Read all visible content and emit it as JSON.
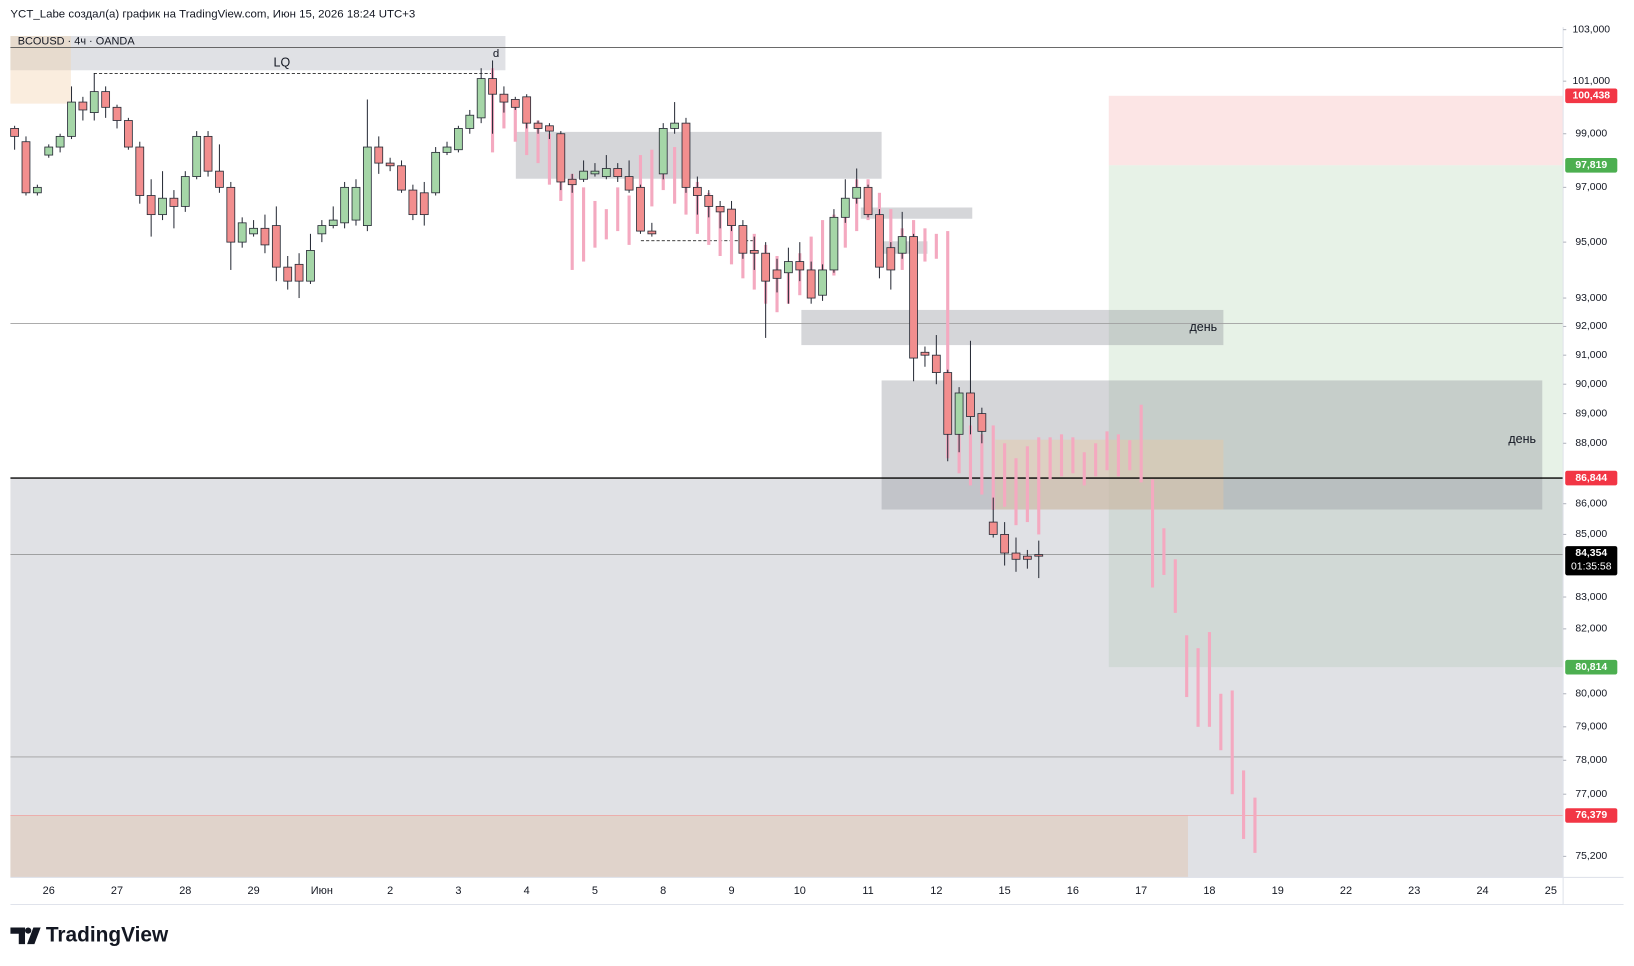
{
  "header": {
    "author_line": "YCT_Labe создал(а) график на TradingView.com, Июн 15, 2026 18:24 UTC+3",
    "symbol": "BCOUSD · 4ч · OANDA"
  },
  "footer": {
    "brand": "TradingView"
  },
  "chart_data": {
    "type": "candlestick",
    "yscale": "log",
    "grid": false,
    "up_color": "#a5d6a7",
    "down_color": "#f28e8e",
    "projection_color": "#f4a9c0",
    "categories": [
      "26",
      "27",
      "28",
      "29",
      "Июн",
      "2",
      "3",
      "4",
      "5",
      "8",
      "9",
      "10",
      "11",
      "12",
      "15",
      "16",
      "17",
      "18",
      "19",
      "22",
      "23",
      "24",
      "25"
    ],
    "ylim": [
      74600,
      103100
    ],
    "yticks": [
      {
        "value": 103000,
        "label": "103,000"
      },
      {
        "value": 101000,
        "label": "101,000"
      },
      {
        "value": 99000,
        "label": "99,000"
      },
      {
        "value": 97000,
        "label": "97,000"
      },
      {
        "value": 95000,
        "label": "95,000"
      },
      {
        "value": 93000,
        "label": "93,000"
      },
      {
        "value": 92000,
        "label": "92,000"
      },
      {
        "value": 91000,
        "label": "91,000"
      },
      {
        "value": 90000,
        "label": "90,000"
      },
      {
        "value": 89000,
        "label": "89,000"
      },
      {
        "value": 88000,
        "label": "88,000"
      },
      {
        "value": 86000,
        "label": "86,000"
      },
      {
        "value": 85000,
        "label": "85,000"
      },
      {
        "value": 83000,
        "label": "83,000"
      },
      {
        "value": 82000,
        "label": "82,000"
      },
      {
        "value": 80000,
        "label": "80,000"
      },
      {
        "value": 79000,
        "label": "79,000"
      },
      {
        "value": 78000,
        "label": "78,000"
      },
      {
        "value": 77000,
        "label": "77,000"
      },
      {
        "value": 75200,
        "label": "75,200"
      }
    ],
    "candles": {
      "open": [
        99200,
        98700,
        96800,
        98200,
        98500,
        98900,
        100200,
        99800,
        100600,
        100000,
        99500,
        98500,
        96700,
        96000,
        96600,
        96300,
        97400,
        98900,
        97600,
        97000,
        95000,
        95300,
        95500,
        95600,
        94100,
        94200,
        93600,
        95300,
        95600,
        95700,
        95800,
        95600,
        98500,
        97900,
        97800,
        96900,
        96800,
        96800,
        98300,
        98400,
        99200,
        99600,
        101100,
        100500,
        100300,
        100400,
        99400,
        99300,
        99000,
        97300,
        97300,
        97500,
        97400,
        97700,
        97400,
        97000,
        95400,
        97500,
        99200,
        99400,
        97000,
        96700,
        96300,
        96200,
        95600,
        94700,
        94600,
        94000,
        93900,
        94300,
        94000,
        93100,
        94000,
        95900,
        96600,
        97000,
        96000,
        94800,
        94600,
        95200,
        91100,
        91000,
        90400,
        88300,
        89700,
        89000,
        85400,
        85000,
        84400,
        84300,
        84350,
        null,
        null,
        null,
        null,
        null,
        null,
        null,
        null,
        null,
        null,
        null,
        null,
        null,
        null,
        null,
        null,
        null,
        null,
        null
      ],
      "high": [
        99300,
        98900,
        97100,
        98600,
        99000,
        100800,
        100400,
        101300,
        100800,
        100100,
        99600,
        98700,
        97300,
        97600,
        96900,
        97600,
        99100,
        99100,
        98600,
        97200,
        95900,
        95800,
        96000,
        96300,
        94500,
        94600,
        95300,
        95800,
        96300,
        97200,
        97300,
        100300,
        98900,
        98100,
        98000,
        97100,
        97200,
        98500,
        98700,
        99300,
        99900,
        101500,
        101800,
        100800,
        100400,
        100500,
        99500,
        99400,
        99100,
        97500,
        98000,
        97900,
        98200,
        97900,
        98000,
        97100,
        95700,
        99400,
        100200,
        99600,
        97400,
        96900,
        96500,
        96500,
        95800,
        95200,
        95000,
        94400,
        94800,
        95000,
        94300,
        94200,
        96200,
        97300,
        97700,
        97100,
        96200,
        95000,
        96100,
        95300,
        91300,
        91700,
        90500,
        89900,
        91500,
        89200,
        86200,
        85400,
        84900,
        84500,
        84800,
        null,
        null,
        null,
        null,
        null,
        null,
        null,
        null,
        null,
        null,
        null,
        null,
        null,
        null,
        null,
        null,
        null,
        null,
        null
      ],
      "low": [
        98400,
        96700,
        96700,
        98100,
        98300,
        98800,
        99500,
        99500,
        99600,
        99200,
        98400,
        96400,
        95200,
        95800,
        95500,
        96100,
        97300,
        97400,
        96800,
        94000,
        94800,
        95200,
        94600,
        93600,
        93300,
        93000,
        93500,
        95000,
        95500,
        95500,
        95600,
        95400,
        97500,
        97600,
        96800,
        95800,
        95600,
        96700,
        98200,
        98300,
        99000,
        99400,
        99000,
        99800,
        99900,
        99200,
        99000,
        98800,
        96900,
        96800,
        97200,
        97400,
        97300,
        97200,
        96800,
        95300,
        95200,
        97300,
        99000,
        96800,
        96000,
        95900,
        95500,
        95400,
        94400,
        94000,
        91600,
        93200,
        92800,
        93600,
        92800,
        92900,
        93900,
        95700,
        96400,
        95900,
        93700,
        93300,
        94400,
        90100,
        90600,
        90000,
        87400,
        87700,
        88300,
        88000,
        84900,
        84000,
        83800,
        83900,
        83600,
        null,
        null,
        null,
        null,
        null,
        null,
        null,
        null,
        null,
        null,
        null,
        null,
        null,
        null,
        null,
        null,
        null,
        null,
        null
      ],
      "close": [
        98900,
        96800,
        97000,
        98500,
        98900,
        100200,
        99900,
        100600,
        100000,
        99500,
        98500,
        96700,
        96000,
        96600,
        96300,
        97400,
        98900,
        97600,
        97000,
        95000,
        95700,
        95500,
        94900,
        94100,
        93600,
        93600,
        94700,
        95600,
        95800,
        97000,
        97000,
        98500,
        97900,
        97800,
        96900,
        96000,
        96000,
        98300,
        98500,
        99200,
        99700,
        101100,
        100500,
        100200,
        100000,
        99400,
        99200,
        99100,
        97200,
        97100,
        97600,
        97600,
        97700,
        97400,
        96900,
        95400,
        95300,
        99200,
        99400,
        97000,
        96700,
        96300,
        96100,
        95600,
        94600,
        94600,
        93600,
        93700,
        94300,
        94000,
        93000,
        94000,
        95900,
        96600,
        97000,
        96000,
        94100,
        94000,
        95200,
        90900,
        91000,
        90400,
        88300,
        89700,
        88900,
        88400,
        85000,
        84400,
        84200,
        84200,
        84300,
        null,
        null,
        null,
        null,
        null,
        null,
        null,
        null,
        null,
        null,
        null,
        null,
        null,
        null,
        null,
        null,
        null,
        null,
        null
      ]
    },
    "projection": {
      "high": [
        null,
        null,
        null,
        null,
        null,
        null,
        null,
        null,
        null,
        null,
        null,
        null,
        null,
        null,
        null,
        null,
        null,
        null,
        null,
        null,
        null,
        null,
        null,
        null,
        null,
        null,
        null,
        null,
        null,
        null,
        null,
        null,
        null,
        null,
        null,
        null,
        null,
        null,
        null,
        null,
        null,
        null,
        101500,
        100300,
        100000,
        99800,
        99500,
        99000,
        98500,
        97500,
        97000,
        96500,
        96200,
        97000,
        96700,
        98200,
        98400,
        98200,
        98500,
        97500,
        97200,
        96800,
        96300,
        96000,
        95600,
        95300,
        94900,
        94500,
        94300,
        94600,
        95200,
        95800,
        96000,
        96300,
        97300,
        97300,
        96800,
        96200,
        95500,
        95800,
        95500,
        95300,
        95400,
        89000,
        88600,
        88300,
        88600,
        88000,
        87500,
        87900,
        88200,
        88200,
        88300,
        88200,
        87700,
        88000,
        88400,
        88300,
        88100,
        89300,
        86800,
        85200,
        84200,
        81800,
        81400,
        81900,
        80000,
        80100,
        77700,
        76900
      ],
      "low": [
        null,
        null,
        null,
        null,
        null,
        null,
        null,
        null,
        null,
        null,
        null,
        null,
        null,
        null,
        null,
        null,
        null,
        null,
        null,
        null,
        null,
        null,
        null,
        null,
        null,
        null,
        null,
        null,
        null,
        null,
        null,
        null,
        null,
        null,
        null,
        null,
        null,
        null,
        null,
        null,
        null,
        null,
        98300,
        99200,
        98700,
        98200,
        97900,
        97100,
        96500,
        94000,
        94300,
        94800,
        95100,
        95400,
        94900,
        96000,
        96300,
        96900,
        96400,
        96000,
        95300,
        94900,
        94500,
        94200,
        93700,
        93300,
        92800,
        92500,
        92800,
        93100,
        93500,
        93300,
        93800,
        94800,
        95400,
        95800,
        95600,
        94500,
        94000,
        94600,
        94300,
        94400,
        87500,
        87000,
        86600,
        86300,
        85800,
        85900,
        85300,
        85400,
        85000,
        86800,
        86900,
        87000,
        86600,
        86900,
        87100,
        86900,
        87100,
        86700,
        83300,
        83700,
        82500,
        79900,
        79000,
        79000,
        78300,
        77000,
        75700,
        75300
      ]
    },
    "zones": [
      {
        "top": 100438,
        "bottom": 97819,
        "color": "#f9c5c5"
      },
      {
        "top": 97819,
        "bottom": 80814,
        "color": "#c9e3c9"
      },
      {
        "top": 86810,
        "bottom": 74600,
        "color": "#b2b5be"
      },
      {
        "top": 102750,
        "bottom": 101420,
        "color": "#b2b5be"
      },
      {
        "top": 102750,
        "bottom": 100140,
        "color": "#f3d3ac"
      },
      {
        "top": 99070,
        "bottom": 97320,
        "color": "#9598a1"
      },
      {
        "top": 96260,
        "bottom": 95850,
        "color": "#9598a1"
      },
      {
        "top": 95030,
        "bottom": 94580,
        "color": "#9598a1"
      },
      {
        "top": 92580,
        "bottom": 91350,
        "color": "#9598a1",
        "label": "день"
      },
      {
        "top": 90130,
        "bottom": 85810,
        "color": "#9598a1",
        "label": "день"
      },
      {
        "top": 88120,
        "bottom": 85810,
        "color": "#e8c9a0"
      },
      {
        "top": 76390,
        "bottom": 74600,
        "color": "#e0bfa4"
      }
    ],
    "levels": [
      {
        "value": 102300,
        "color": "#555555"
      },
      {
        "value": 92100,
        "color": "#a0a0a0"
      },
      {
        "value": 86844,
        "color": "#000000"
      },
      {
        "value": 84354,
        "color": "#8a8a8a"
      },
      {
        "value": 78100,
        "color": "#a0a0a0"
      },
      {
        "value": 76379,
        "color": "#f0a0a0"
      },
      {
        "value": 101300,
        "color": "#000000",
        "label": "LQ"
      },
      {
        "value": 95050,
        "color": "#000000"
      }
    ],
    "marker": {
      "value": 101800,
      "label": "d"
    },
    "price_tags": [
      {
        "value": 100438,
        "label": "100,438",
        "color": "#f23645"
      },
      {
        "value": 97819,
        "label": "97,819",
        "color": "#4caf50"
      },
      {
        "value": 86844,
        "label": "86,844",
        "color": "#f23645"
      },
      {
        "value": 84354,
        "label": "84,354",
        "color": "#000000",
        "countdown": "01:35:58"
      },
      {
        "value": 80814,
        "label": "80,814",
        "color": "#4caf50"
      },
      {
        "value": 76379,
        "label": "76,379",
        "color": "#f23645"
      }
    ]
  }
}
